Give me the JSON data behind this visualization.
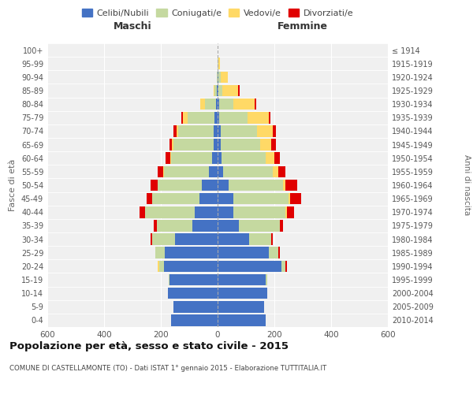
{
  "age_groups": [
    "0-4",
    "5-9",
    "10-14",
    "15-19",
    "20-24",
    "25-29",
    "30-34",
    "35-39",
    "40-44",
    "45-49",
    "50-54",
    "55-59",
    "60-64",
    "65-69",
    "70-74",
    "75-79",
    "80-84",
    "85-89",
    "90-94",
    "95-99",
    "100+"
  ],
  "birth_years": [
    "2010-2014",
    "2005-2009",
    "2000-2004",
    "1995-1999",
    "1990-1994",
    "1985-1989",
    "1980-1984",
    "1975-1979",
    "1970-1974",
    "1965-1969",
    "1960-1964",
    "1955-1959",
    "1950-1954",
    "1945-1949",
    "1940-1944",
    "1935-1939",
    "1930-1934",
    "1925-1929",
    "1920-1924",
    "1915-1919",
    "≤ 1914"
  ],
  "males": {
    "celibi": [
      165,
      155,
      175,
      170,
      190,
      185,
      150,
      90,
      80,
      65,
      55,
      30,
      20,
      15,
      15,
      10,
      5,
      2,
      0,
      0,
      0
    ],
    "coniugati": [
      0,
      0,
      0,
      2,
      15,
      35,
      80,
      125,
      175,
      165,
      155,
      160,
      145,
      140,
      125,
      95,
      40,
      8,
      2,
      0,
      0
    ],
    "vedovi": [
      0,
      0,
      0,
      0,
      5,
      0,
      0,
      0,
      0,
      0,
      2,
      2,
      2,
      5,
      5,
      18,
      15,
      5,
      2,
      0,
      0
    ],
    "divorziati": [
      0,
      0,
      0,
      0,
      0,
      0,
      5,
      10,
      20,
      20,
      25,
      20,
      15,
      10,
      10,
      5,
      0,
      0,
      0,
      0,
      0
    ]
  },
  "females": {
    "nubili": [
      170,
      165,
      175,
      170,
      225,
      180,
      110,
      75,
      55,
      55,
      40,
      20,
      15,
      10,
      10,
      5,
      5,
      2,
      2,
      0,
      0
    ],
    "coniugate": [
      0,
      0,
      0,
      5,
      15,
      35,
      80,
      145,
      185,
      195,
      190,
      175,
      155,
      140,
      130,
      100,
      50,
      15,
      8,
      2,
      0
    ],
    "vedove": [
      0,
      0,
      0,
      0,
      0,
      0,
      0,
      0,
      5,
      5,
      10,
      20,
      30,
      40,
      55,
      75,
      75,
      55,
      25,
      5,
      0
    ],
    "divorziate": [
      0,
      0,
      0,
      0,
      5,
      5,
      5,
      10,
      25,
      40,
      40,
      25,
      20,
      15,
      10,
      5,
      5,
      5,
      0,
      0,
      0
    ]
  },
  "colors": {
    "celibi": "#4472C4",
    "coniugati": "#C5D9A0",
    "vedovi": "#FFD966",
    "divorziati": "#E00000"
  },
  "xlim": 600,
  "title": "Popolazione per età, sesso e stato civile - 2015",
  "subtitle": "COMUNE DI CASTELLAMONTE (TO) - Dati ISTAT 1° gennaio 2015 - Elaborazione TUTTITALIA.IT",
  "ylabel_left": "Fasce di età",
  "ylabel_right": "Anni di nascita",
  "xlabel_left": "Maschi",
  "xlabel_right": "Femmine",
  "bg_color": "#f0f0f0"
}
